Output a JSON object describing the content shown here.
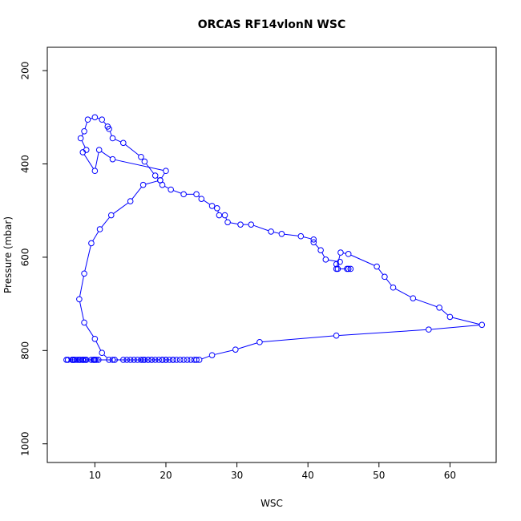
{
  "chart_data": {
    "type": "line",
    "title": "ORCAS RF14vlonN WSC",
    "xlabel": "WSC",
    "ylabel": "Pressure (mbar)",
    "xlim": [
      3.3,
      66.5
    ],
    "ylim": [
      1040,
      150
    ],
    "y_reversed": true,
    "grid": false,
    "legend": "none",
    "color": "#0000ff",
    "marker": "open-circle",
    "x_ticks": [
      10,
      20,
      30,
      40,
      50,
      60
    ],
    "y_ticks": [
      200,
      400,
      600,
      800,
      1000
    ],
    "series": [
      {
        "x": [
          14.5,
          15.0,
          15.5,
          16.0,
          16.5,
          17.0,
          17.5,
          18.0,
          18.5,
          19.0,
          19.5,
          20.0,
          20.5,
          21.0,
          21.5,
          22.0,
          22.5,
          23.0,
          23.5,
          24.0,
          24.3,
          24.7,
          26.5,
          29.8,
          33.2,
          44.0,
          57.0,
          64.5,
          60.0,
          58.5,
          54.8,
          52.0,
          50.8,
          49.7,
          45.7,
          44.6,
          44.0,
          45.7,
          46.0,
          45.5,
          44.2,
          44.0,
          44.5,
          42.5,
          41.8,
          40.8,
          40.8,
          39.0,
          36.3,
          34.8,
          32.0,
          30.5,
          28.7,
          28.3,
          27.5,
          27.2,
          26.5,
          25.0,
          24.3,
          22.5,
          20.7,
          19.5,
          19.2,
          18.5,
          17.0,
          16.5,
          14.0,
          12.5,
          12.0,
          11.8,
          11.0,
          10.0,
          9.0,
          8.5,
          8.0,
          8.8,
          8.3,
          10.0,
          10.6,
          12.5,
          20.0,
          19.2,
          16.8,
          15.0,
          12.3,
          10.7,
          9.5,
          8.5,
          7.8,
          8.5,
          10.0,
          11.0,
          12.0,
          12.5,
          17.5,
          19.5,
          21.0,
          20.0,
          19.5,
          18.0,
          16.8,
          14.0,
          12.8,
          10.2,
          8.7,
          7.8,
          7.0,
          6.0,
          6.2,
          7.5,
          8.3,
          9.5,
          9.9,
          10.5,
          10.0,
          9.8,
          8.5,
          8.3,
          8.8,
          7.0,
          6.8,
          7.2,
          6.8,
          7.8,
          8.0
        ],
        "y": [
          820,
          820,
          820,
          820,
          820,
          820,
          820,
          820,
          820,
          820,
          820,
          820,
          820,
          820,
          820,
          820,
          820,
          820,
          820,
          820,
          820,
          820,
          810,
          798,
          782,
          768,
          755,
          745,
          728,
          708,
          688,
          665,
          642,
          620,
          593,
          590,
          625,
          625,
          625,
          625,
          625,
          615,
          610,
          605,
          585,
          568,
          562,
          555,
          550,
          545,
          530,
          530,
          525,
          510,
          510,
          495,
          490,
          475,
          465,
          465,
          455,
          445,
          435,
          425,
          395,
          385,
          355,
          345,
          325,
          320,
          305,
          300,
          305,
          330,
          345,
          370,
          375,
          415,
          370,
          390,
          415,
          435,
          445,
          480,
          510,
          540,
          570,
          635,
          690,
          740,
          775,
          805,
          820,
          820,
          820,
          820,
          820,
          820,
          820,
          820,
          820,
          820,
          820,
          820,
          820,
          820,
          820,
          820,
          820,
          820,
          820,
          820,
          820,
          820,
          820,
          820,
          820,
          820,
          820,
          820,
          820,
          820,
          820,
          820,
          820
        ]
      }
    ]
  }
}
